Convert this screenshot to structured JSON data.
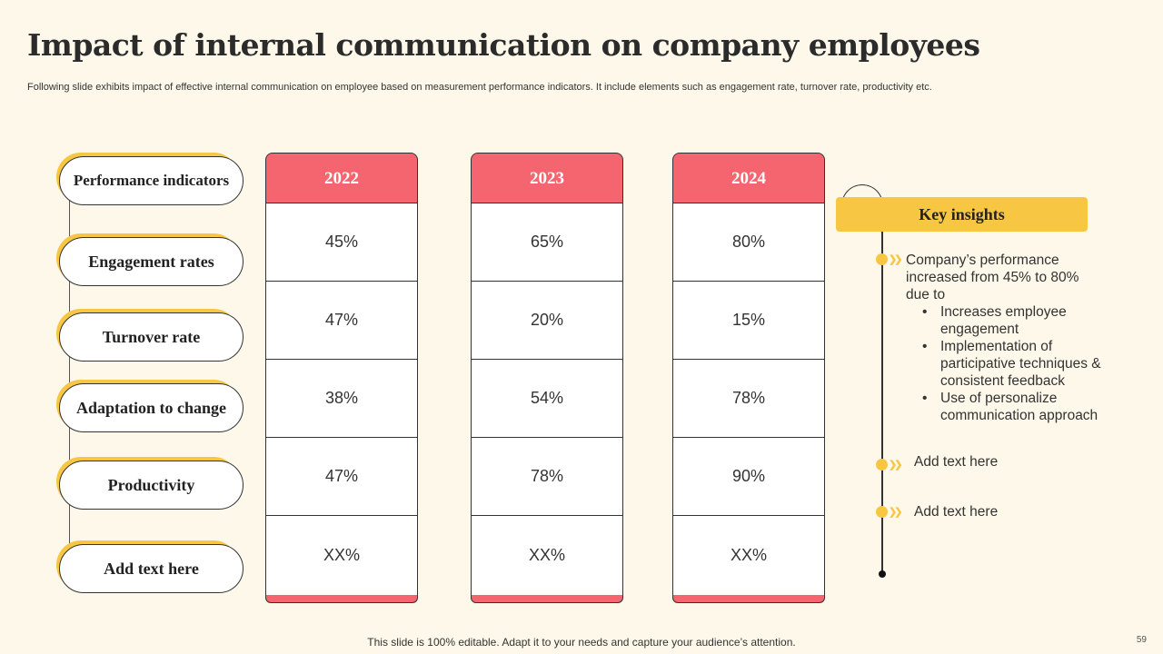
{
  "title": "Impact of internal communication on company employees",
  "subtitle": "Following slide exhibits impact of effective internal communication on employee based on measurement performance indicators. It include elements such as engagement rate, turnover rate, productivity etc.",
  "indicators": {
    "header": "Performance indicators",
    "rows": [
      "Engagement rates",
      "Turnover rate",
      "Adaptation to change",
      "Productivity",
      "Add text here"
    ]
  },
  "years": [
    {
      "label": "2022",
      "values": [
        "45%",
        "47%",
        "38%",
        "47%",
        "XX%"
      ]
    },
    {
      "label": "2023",
      "values": [
        "65%",
        "20%",
        "54%",
        "78%",
        "XX%"
      ]
    },
    {
      "label": "2024",
      "values": [
        "80%",
        "15%",
        "78%",
        "90%",
        "XX%"
      ]
    }
  ],
  "insights": {
    "header": "Key insights",
    "main": "Company’s performance increased from 45% to 80% due to",
    "bullets": [
      "Increases employee engagement",
      "Implementation of participative techniques & consistent feedback",
      "Use of personalize communication approach"
    ],
    "extra": [
      "Add text here",
      "Add text here"
    ]
  },
  "footer": "This slide is 100% editable. Adapt it to your needs and capture your audience’s attention.",
  "page_number": "59",
  "colors": {
    "accent_red": "#f4656f",
    "accent_yellow": "#f7c743",
    "background": "#fdf8e9"
  }
}
